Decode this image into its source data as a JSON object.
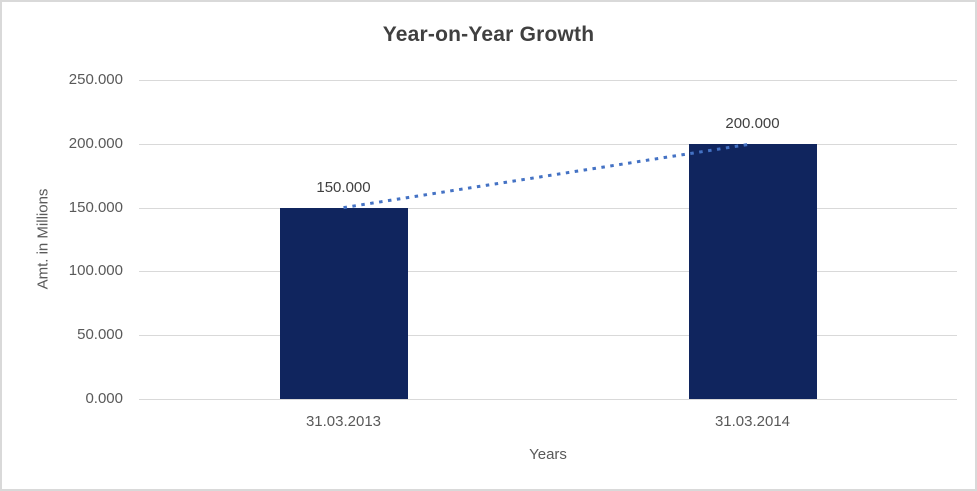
{
  "chart_data": {
    "type": "bar",
    "title": "Year-on-Year Growth",
    "xlabel": "Years",
    "ylabel": "Amt. in Millions",
    "categories": [
      "31.03.2013",
      "31.03.2014"
    ],
    "series": [
      {
        "name": "Amt. in Millions",
        "values": [
          150000,
          200000
        ],
        "data_labels": [
          "150.000",
          "200.000"
        ]
      }
    ],
    "ylim": [
      0,
      250000
    ],
    "yticks": [
      0,
      50000,
      100000,
      150000,
      200000,
      250000
    ],
    "ytick_labels": [
      "0.000",
      "50.000",
      "100.000",
      "150.000",
      "200.000",
      "250.000"
    ],
    "grid": true,
    "legend": false,
    "trendline": {
      "type": "linear",
      "style": "dotted",
      "from_value": 150000,
      "to_value": 200000
    },
    "colors": {
      "bar": "#10255e",
      "trendline": "#4472c4",
      "gridline": "#d9d9d9",
      "border": "#d9d9d9",
      "background": "#ffffff",
      "title_text": "#404040",
      "axis_text": "#595959",
      "data_label_text": "#404040"
    }
  }
}
